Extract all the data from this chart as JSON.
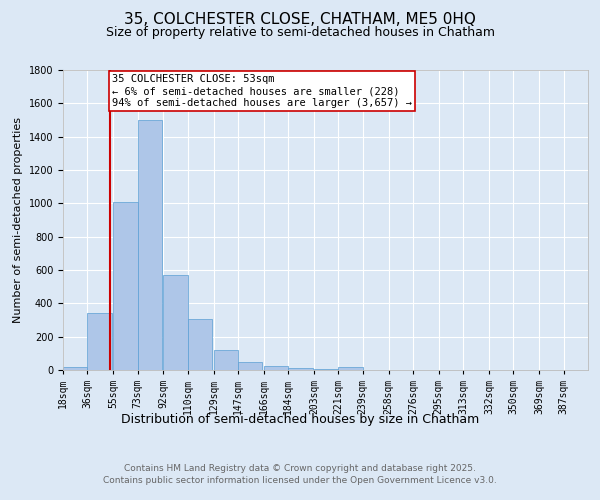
{
  "title": "35, COLCHESTER CLOSE, CHATHAM, ME5 0HQ",
  "subtitle": "Size of property relative to semi-detached houses in Chatham",
  "xlabel": "Distribution of semi-detached houses by size in Chatham",
  "ylabel": "Number of semi-detached properties",
  "bin_labels": [
    "18sqm",
    "36sqm",
    "55sqm",
    "73sqm",
    "92sqm",
    "110sqm",
    "129sqm",
    "147sqm",
    "166sqm",
    "184sqm",
    "203sqm",
    "221sqm",
    "239sqm",
    "258sqm",
    "276sqm",
    "295sqm",
    "313sqm",
    "332sqm",
    "350sqm",
    "369sqm",
    "387sqm"
  ],
  "bin_edges": [
    18,
    36,
    55,
    73,
    92,
    110,
    129,
    147,
    166,
    184,
    203,
    221,
    239,
    258,
    276,
    295,
    313,
    332,
    350,
    369,
    387
  ],
  "bar_heights": [
    20,
    340,
    1010,
    1500,
    570,
    305,
    120,
    50,
    25,
    15,
    5,
    20,
    0,
    0,
    0,
    0,
    0,
    0,
    0,
    0
  ],
  "bar_color": "#aec6e8",
  "bar_edge_color": "#5a9fd4",
  "property_size": 53,
  "vline_color": "#cc0000",
  "annotation_line1": "35 COLCHESTER CLOSE: 53sqm",
  "annotation_line2": "← 6% of semi-detached houses are smaller (228)",
  "annotation_line3": "94% of semi-detached houses are larger (3,657) →",
  "annotation_box_color": "#ffffff",
  "annotation_box_edge": "#cc0000",
  "ylim": [
    0,
    1800
  ],
  "yticks": [
    0,
    200,
    400,
    600,
    800,
    1000,
    1200,
    1400,
    1600,
    1800
  ],
  "bg_color": "#dce8f5",
  "plot_bg_color": "#dce8f5",
  "footer_line1": "Contains HM Land Registry data © Crown copyright and database right 2025.",
  "footer_line2": "Contains public sector information licensed under the Open Government Licence v3.0.",
  "footer_color": "#666666",
  "title_fontsize": 11,
  "subtitle_fontsize": 9,
  "xlabel_fontsize": 9,
  "ylabel_fontsize": 8,
  "tick_fontsize": 7,
  "annotation_fontsize": 7.5,
  "footer_fontsize": 6.5
}
